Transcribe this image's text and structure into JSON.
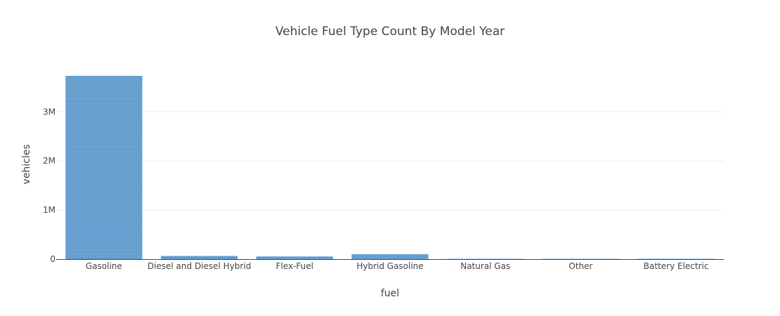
{
  "chart_data": {
    "type": "bar",
    "title": "Vehicle Fuel Type Count By Model Year",
    "xlabel": "fuel",
    "ylabel": "vehicles",
    "categories": [
      "Gasoline",
      "Diesel and Diesel Hybrid",
      "Flex-Fuel",
      "Hybrid Gasoline",
      "Natural Gas",
      "Other",
      "Battery Electric"
    ],
    "values": [
      3730000,
      60000,
      50000,
      95000,
      1500,
      1000,
      2000
    ],
    "segment_boundaries": {
      "Gasoline": [
        0,
        30000,
        80000,
        150000,
        220000,
        300000,
        380000,
        460000,
        540000,
        620000,
        700000,
        740000,
        830000,
        920000,
        1000000,
        1090000,
        1180000,
        1260000,
        1310000,
        1400000,
        1490000,
        1580000,
        1670000,
        1770000,
        1860000,
        1950000,
        2040000,
        2150000,
        2240000,
        2330000,
        2420000,
        2520000,
        2650000,
        2740000,
        2830000,
        2920000,
        3030000,
        3120000,
        3210000,
        3320000,
        3380000,
        3460000,
        3540000,
        3620000,
        3690000,
        3730000
      ],
      "Diesel and Diesel Hybrid": [
        0,
        20000,
        40000,
        60000
      ],
      "Flex-Fuel": [
        0,
        25000,
        50000
      ],
      "Hybrid Gasoline": [
        0,
        30000,
        60000,
        95000
      ]
    },
    "ylim": [
      0,
      3920000
    ],
    "yticks": [
      0,
      1000000,
      2000000,
      3000000
    ],
    "ytick_labels": [
      "0",
      "1M",
      "2M",
      "3M"
    ],
    "grid": true,
    "legend": "none",
    "colors": {
      "bar_fill": "#6aa1cf",
      "bar_edge": "#5b9bd5",
      "grid": "#eeeeee",
      "axis_line": "#444444",
      "text": "#444444"
    }
  }
}
